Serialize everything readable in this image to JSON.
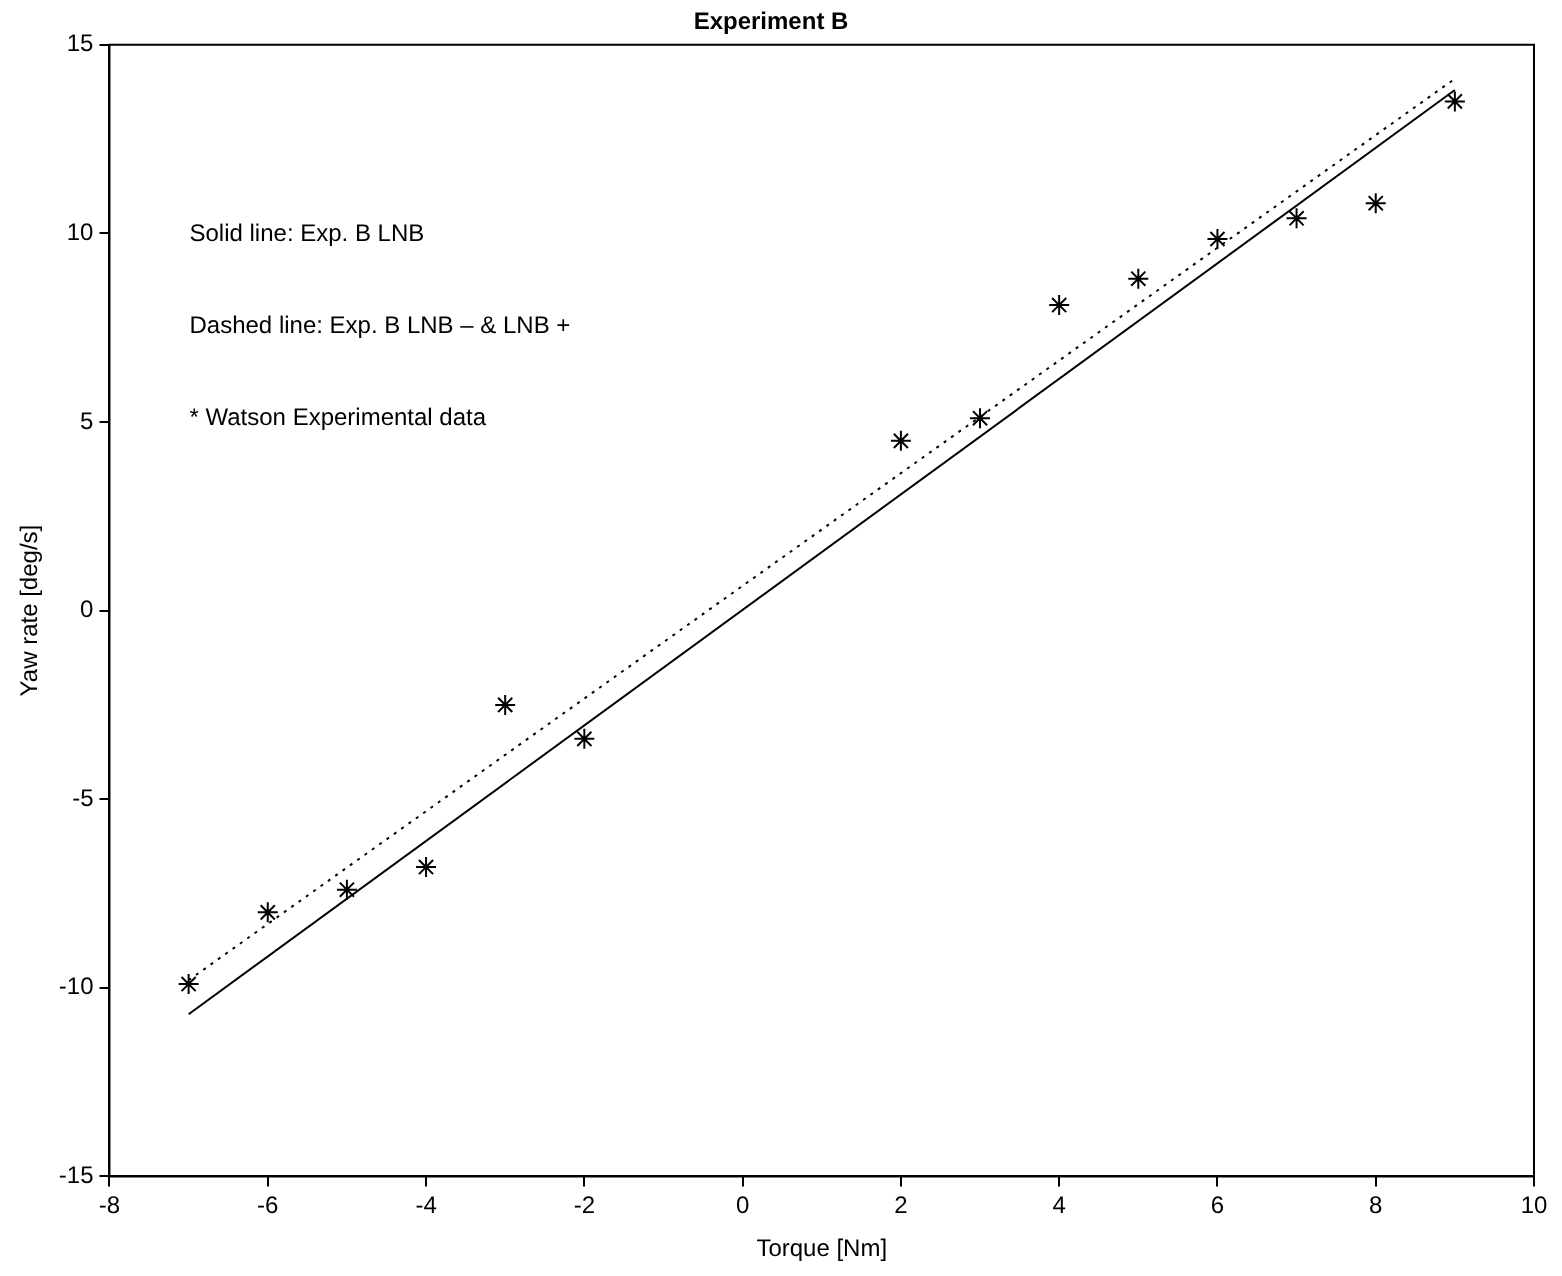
{
  "chart_data": {
    "type": "scatter",
    "title": "Experiment B",
    "xlabel": "Torque [Nm]",
    "ylabel": "Yaw rate [deg/s]",
    "xlim": [
      -8,
      10
    ],
    "xticks": [
      -8,
      -6,
      -4,
      -2,
      0,
      2,
      4,
      6,
      8,
      10
    ],
    "ylim": [
      -15,
      15
    ],
    "yticks": [
      -15,
      -10,
      -5,
      0,
      5,
      10,
      15
    ],
    "grid": false,
    "legend": false,
    "annotations": [
      "Solid line: Exp. B LNB",
      "Dashed line: Exp. B LNB – & LNB +",
      "* Watson Experimental data"
    ],
    "series": [
      {
        "type": "scatter",
        "color": "#000000",
        "marker": "cross",
        "x": [
          -7,
          -6,
          -5,
          -4,
          -3,
          -2,
          2,
          3,
          4,
          5,
          6,
          7,
          8,
          9
        ],
        "values": [
          -9.9,
          -8.0,
          -7.4,
          -6.8,
          -2.5,
          -3.4,
          4.5,
          5.1,
          8.1,
          8.8,
          9.85,
          10.4,
          10.8,
          13.5
        ]
      },
      {
        "type": "line",
        "color": "#000000",
        "line_style": "solid",
        "marker": "none",
        "x": [
          -7,
          9
        ],
        "values": [
          -10.7,
          13.8
        ]
      },
      {
        "type": "line",
        "color": "#000000",
        "line_style": "dotted",
        "marker": "none",
        "x": [
          -7,
          9
        ],
        "values": [
          -9.8,
          14.1
        ]
      }
    ]
  }
}
